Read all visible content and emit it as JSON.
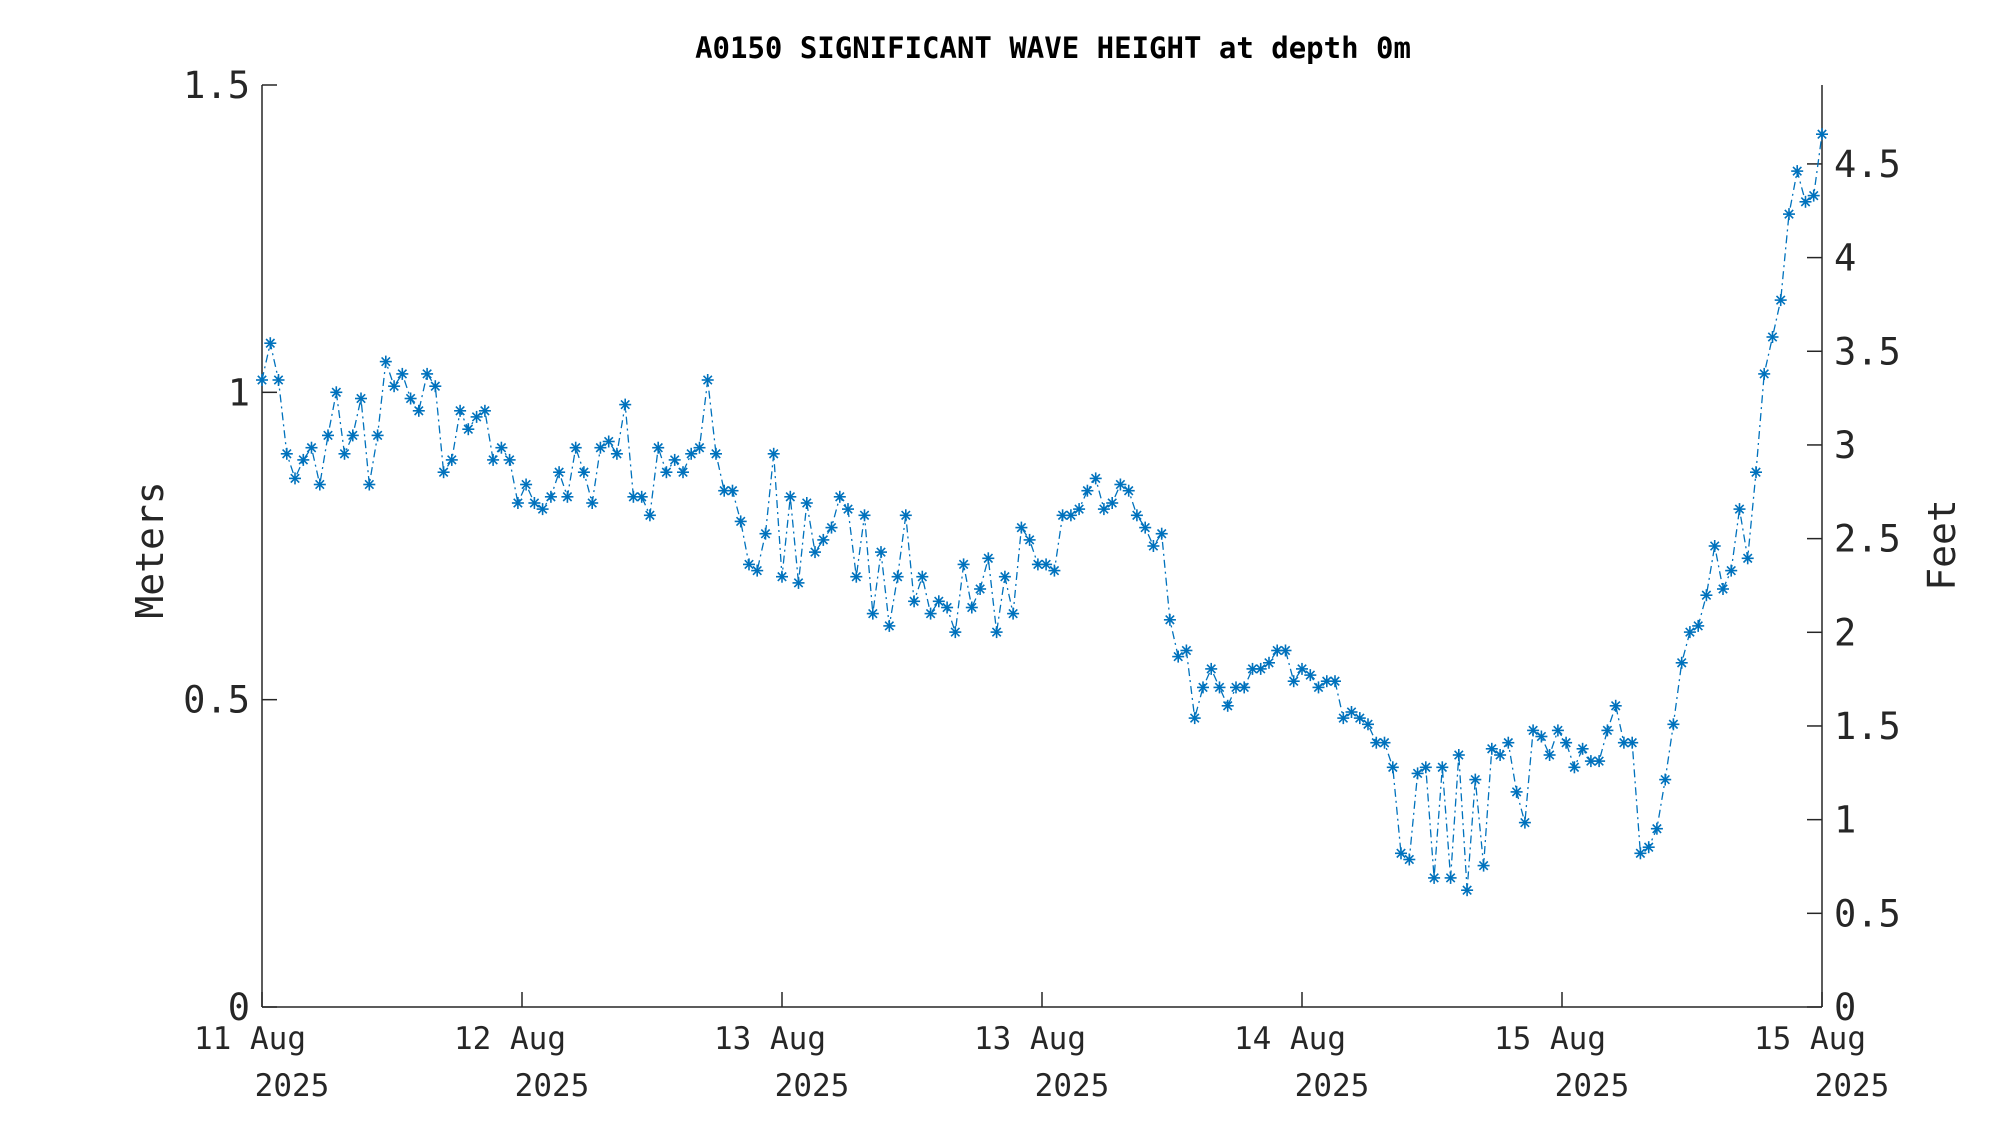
{
  "chart_data": {
    "type": "line",
    "title": "A0150 SIGNIFICANT WAVE HEIGHT at depth 0m",
    "ylabel": "Meters",
    "ylabel_right": "Feet",
    "ylim": [
      0,
      1.5
    ],
    "y_ticks": [
      0,
      0.5,
      1,
      1.5
    ],
    "y_tick_labels": [
      "0",
      "0.5",
      "1",
      "1.5"
    ],
    "y_right_ticks": [
      0,
      0.5,
      1,
      1.5,
      2,
      2.5,
      3,
      3.5,
      4,
      4.5
    ],
    "y_right_tick_labels": [
      "0",
      "0.5",
      "1",
      "1.5",
      "2",
      "2.5",
      "3",
      "3.5",
      "4",
      "4.5"
    ],
    "x_tick_labels": [
      {
        "line1": "11 Aug",
        "line2": "2025"
      },
      {
        "line1": "12 Aug",
        "line2": "2025"
      },
      {
        "line1": "13 Aug",
        "line2": "2025"
      },
      {
        "line1": "13 Aug",
        "line2": "2025"
      },
      {
        "line1": "14 Aug",
        "line2": "2025"
      },
      {
        "line1": "15 Aug",
        "line2": "2025"
      },
      {
        "line1": "15 Aug",
        "line2": "2025"
      }
    ],
    "grid": false,
    "marker": "asterisk",
    "line_style": "dash-dot",
    "series_color": "#0072BD",
    "series": [
      {
        "values": [
          1.02,
          1.08,
          1.02,
          0.9,
          0.86,
          0.89,
          0.91,
          0.85,
          0.93,
          1.0,
          0.9,
          0.93,
          0.99,
          0.85,
          0.93,
          1.05,
          1.01,
          1.03,
          0.99,
          0.97,
          1.03,
          1.01,
          0.87,
          0.89,
          0.97,
          0.94,
          0.96,
          0.97,
          0.89,
          0.91,
          0.89,
          0.82,
          0.85,
          0.82,
          0.81,
          0.83,
          0.87,
          0.83,
          0.91,
          0.87,
          0.82,
          0.91,
          0.92,
          0.9,
          0.98,
          0.83,
          0.83,
          0.8,
          0.91,
          0.87,
          0.89,
          0.87,
          0.9,
          0.91,
          1.02,
          0.9,
          0.84,
          0.84,
          0.79,
          0.72,
          0.71,
          0.77,
          0.9,
          0.7,
          0.83,
          0.69,
          0.82,
          0.74,
          0.76,
          0.78,
          0.83,
          0.81,
          0.7,
          0.8,
          0.64,
          0.74,
          0.62,
          0.7,
          0.8,
          0.66,
          0.7,
          0.64,
          0.66,
          0.65,
          0.61,
          0.72,
          0.65,
          0.68,
          0.73,
          0.61,
          0.7,
          0.64,
          0.78,
          0.76,
          0.72,
          0.72,
          0.71,
          0.8,
          0.8,
          0.81,
          0.84,
          0.86,
          0.81,
          0.82,
          0.85,
          0.84,
          0.8,
          0.78,
          0.75,
          0.77,
          0.63,
          0.57,
          0.58,
          0.47,
          0.52,
          0.55,
          0.52,
          0.49,
          0.52,
          0.52,
          0.55,
          0.55,
          0.56,
          0.58,
          0.58,
          0.53,
          0.55,
          0.54,
          0.52,
          0.53,
          0.53,
          0.47,
          0.48,
          0.47,
          0.46,
          0.43,
          0.43,
          0.39,
          0.25,
          0.24,
          0.38,
          0.39,
          0.21,
          0.39,
          0.21,
          0.41,
          0.19,
          0.37,
          0.23,
          0.42,
          0.41,
          0.43,
          0.35,
          0.3,
          0.45,
          0.44,
          0.41,
          0.45,
          0.43,
          0.39,
          0.42,
          0.4,
          0.4,
          0.45,
          0.49,
          0.43,
          0.43,
          0.25,
          0.26,
          0.29,
          0.37,
          0.46,
          0.56,
          0.61,
          0.62,
          0.67,
          0.75,
          0.68,
          0.71,
          0.81,
          0.73,
          0.87,
          1.03,
          1.09,
          1.15,
          1.29,
          1.36,
          1.31,
          1.32,
          1.42
        ]
      }
    ]
  }
}
